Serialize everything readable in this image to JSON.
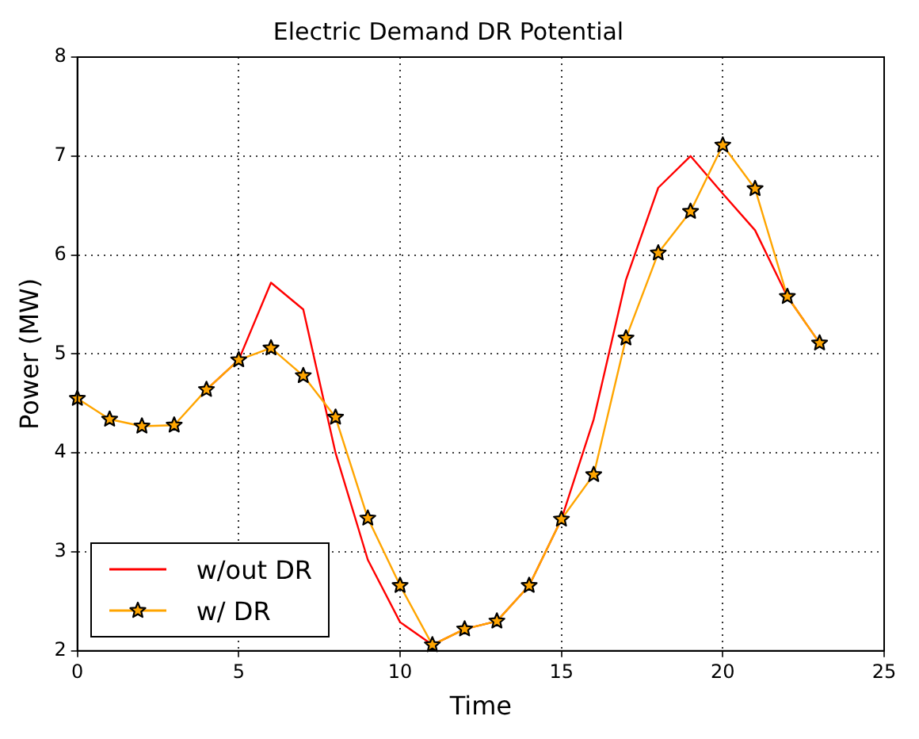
{
  "chart_data": {
    "type": "line",
    "title": "Electric Demand DR Potential",
    "xlabel": "Time",
    "ylabel": "Power (MW)",
    "x": [
      0,
      1,
      2,
      3,
      4,
      5,
      6,
      7,
      8,
      9,
      10,
      11,
      12,
      13,
      14,
      15,
      16,
      17,
      18,
      19,
      20,
      21,
      22,
      23
    ],
    "series": [
      {
        "name": "w/out DR",
        "color": "#ff0000",
        "marker": "none",
        "values": [
          null,
          null,
          null,
          null,
          4.64,
          4.94,
          5.72,
          5.45,
          4.0,
          2.92,
          2.29,
          2.06,
          2.22,
          2.3,
          2.66,
          3.33,
          4.34,
          5.75,
          6.68,
          7.0,
          6.62,
          6.25,
          5.58,
          5.11
        ]
      },
      {
        "name": "w/ DR",
        "color": "#ffa500",
        "marker": "star",
        "values": [
          4.55,
          4.34,
          4.27,
          4.28,
          4.64,
          4.94,
          5.06,
          4.78,
          4.36,
          3.34,
          2.66,
          2.06,
          2.22,
          2.3,
          2.66,
          3.33,
          3.78,
          5.16,
          6.02,
          6.44,
          7.11,
          6.67,
          5.58,
          5.11
        ]
      }
    ],
    "xlim": [
      0,
      25
    ],
    "xticks": [
      0,
      5,
      10,
      15,
      20,
      25
    ],
    "ylim": [
      2,
      8
    ],
    "yticks": [
      2,
      3,
      4,
      5,
      6,
      7,
      8
    ],
    "grid": true,
    "legend": "bottom left",
    "line_style": "solid"
  }
}
